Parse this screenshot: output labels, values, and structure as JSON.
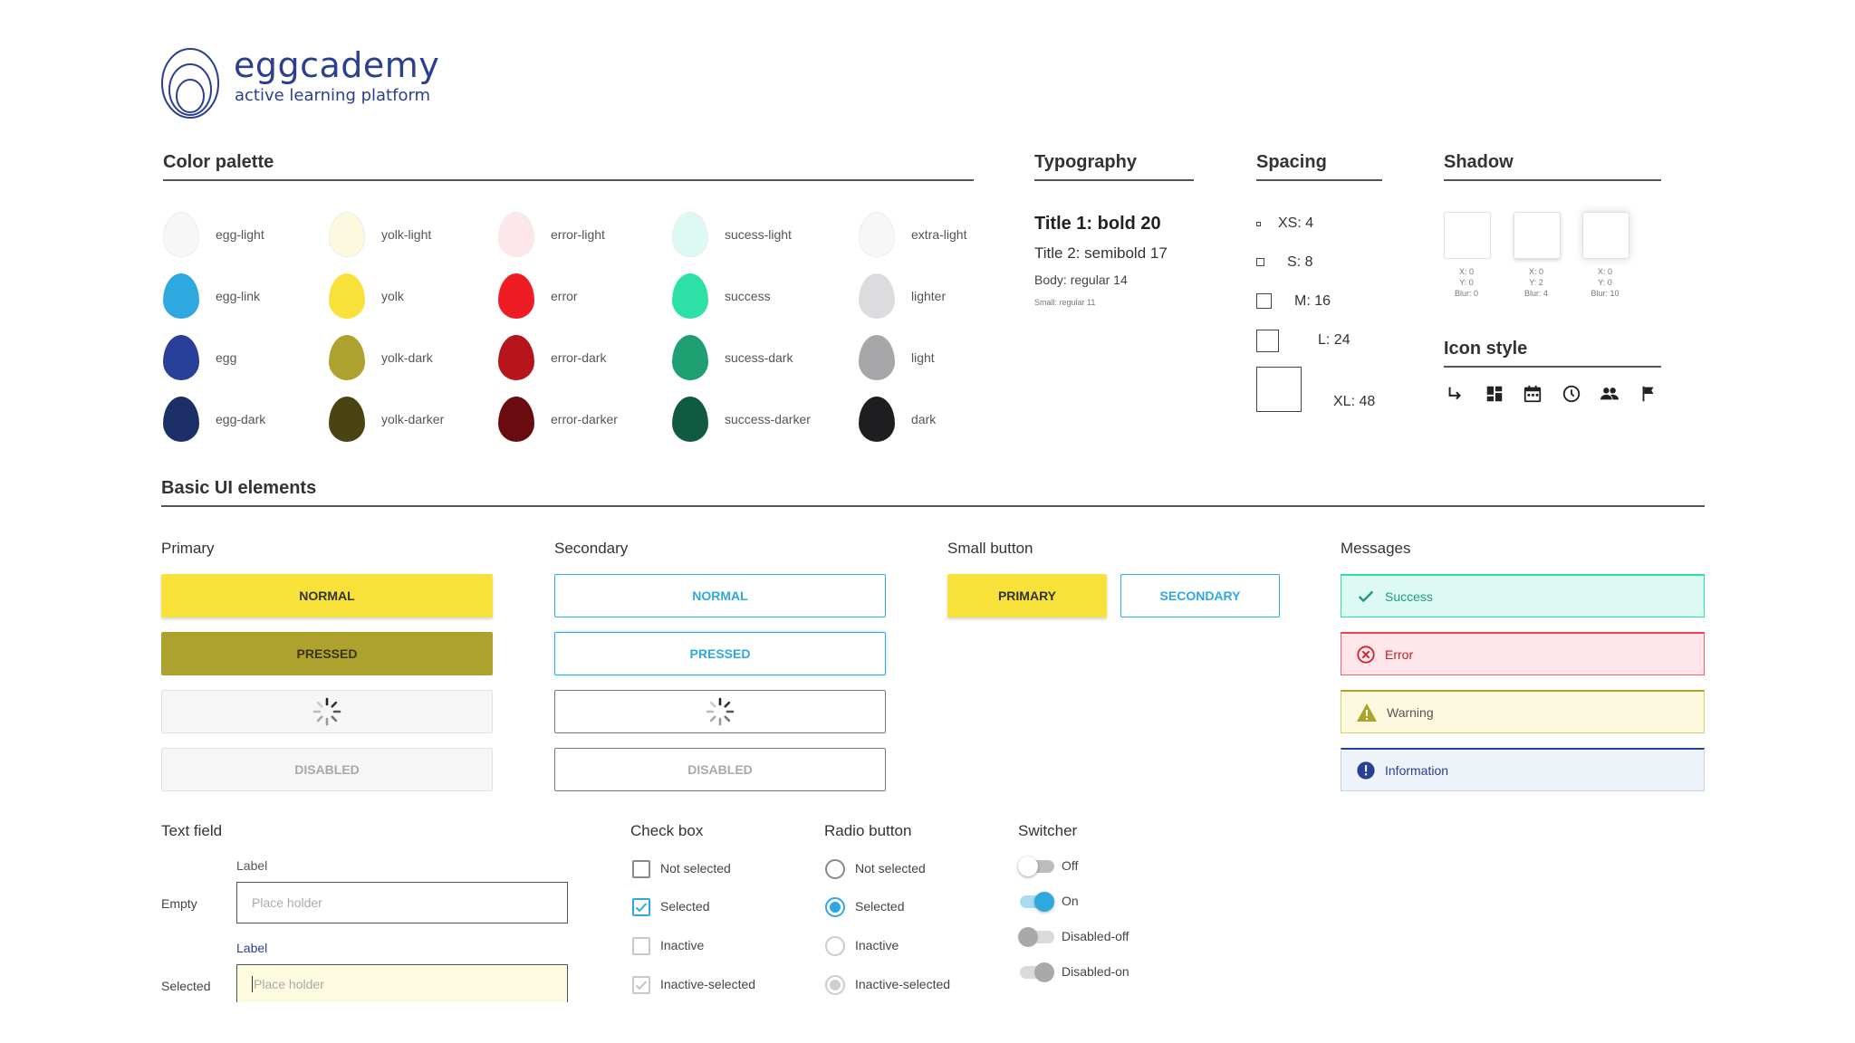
{
  "brand": {
    "name": "eggcademy",
    "tagline": "active learning platform"
  },
  "sections": {
    "color_palette": "Color palette",
    "typography": "Typography",
    "spacing": "Spacing",
    "shadow": "Shadow",
    "icon_style": "Icon style",
    "basic_ui": "Basic UI elements"
  },
  "palette": {
    "col1": [
      {
        "label": "egg-light",
        "color": "#f7f7f7"
      },
      {
        "label": "egg-link",
        "color": "#2fa8e0"
      },
      {
        "label": "egg",
        "color": "#283f97"
      },
      {
        "label": "egg-dark",
        "color": "#1b2e66"
      }
    ],
    "col2": [
      {
        "label": "yolk-light",
        "color": "#fdf9df"
      },
      {
        "label": "yolk",
        "color": "#f8e23a"
      },
      {
        "label": "yolk-dark",
        "color": "#aea22e"
      },
      {
        "label": "yolk-darker",
        "color": "#4a4412"
      }
    ],
    "col3": [
      {
        "label": "error-light",
        "color": "#fde7ea"
      },
      {
        "label": "error",
        "color": "#f01c23"
      },
      {
        "label": "error-dark",
        "color": "#b6151c"
      },
      {
        "label": "error-darker",
        "color": "#6a0b10"
      }
    ],
    "col4": [
      {
        "label": "sucess-light",
        "color": "#dcfaf3"
      },
      {
        "label": "success",
        "color": "#2de0a6"
      },
      {
        "label": "sucess-dark",
        "color": "#1e9f71"
      },
      {
        "label": "success-darker",
        "color": "#0f5a40"
      }
    ],
    "col5": [
      {
        "label": "extra-light",
        "color": "#f7f7f8"
      },
      {
        "label": "lighter",
        "color": "#dcdcde"
      },
      {
        "label": "light",
        "color": "#a7a7a9"
      },
      {
        "label": "dark",
        "color": "#1e1e20"
      }
    ]
  },
  "typography": {
    "title1": "Title 1: bold 20",
    "title2": "Title 2: semibold 17",
    "body": "Body: regular 14",
    "small": "Small: regular 11"
  },
  "spacing": {
    "xs": "XS: 4",
    "s": "S: 8",
    "m": "M: 16",
    "l": "L: 24",
    "xl": "XL: 48"
  },
  "shadows": [
    {
      "x": "X: 0",
      "y": "Y: 0",
      "blur": "Blur: 0"
    },
    {
      "x": "X: 0",
      "y": "Y: 2",
      "blur": "Blur: 4"
    },
    {
      "x": "X: 0",
      "y": "Y: 0",
      "blur": "Blur: 10"
    }
  ],
  "icons": [
    "subdirectory-arrow-icon",
    "dashboard-icon",
    "calendar-icon",
    "clock-icon",
    "people-icon",
    "flag-icon"
  ],
  "primary": {
    "heading": "Primary",
    "normal": "NORMAL",
    "pressed": "PRESSED",
    "disabled": "DISABLED"
  },
  "secondary": {
    "heading": "Secondary",
    "normal": "NORMAL",
    "pressed": "PRESSED",
    "disabled": "DISABLED"
  },
  "small_button": {
    "heading": "Small button",
    "primary": "PRIMARY",
    "secondary": "SECONDARY"
  },
  "messages": {
    "heading": "Messages",
    "success": "Success",
    "error": "Error",
    "warning": "Warning",
    "information": "Information"
  },
  "text_field": {
    "heading": "Text field",
    "label": "Label",
    "empty_row": "Empty",
    "selected_row": "Selected",
    "placeholder": "Place holder"
  },
  "checkbox": {
    "heading": "Check box",
    "items": [
      "Not selected",
      "Selected",
      "Inactive",
      "Inactive-selected"
    ]
  },
  "radio": {
    "heading": "Radio button",
    "items": [
      "Not selected",
      "Selected",
      "Inactive",
      "Inactive-selected"
    ]
  },
  "switcher": {
    "heading": "Switcher",
    "items": [
      "Off",
      "On",
      "Disabled-off",
      "Disabled-on"
    ]
  },
  "colors": {
    "yolk": "#f8e23a",
    "yolk_dark": "#aea22e",
    "egg_link": "#2fa8e0",
    "egg": "#283f97",
    "success_bg": "#dcfaf3",
    "success_border": "#2de0a6",
    "success_icon": "#1e9f71",
    "error_bg": "#fde7ea",
    "error_border": "#f04050",
    "error_icon": "#d0202a",
    "warning_bg": "#fdf9df",
    "warning_border": "#aea22e",
    "warning_icon": "#7e7420",
    "info_bg": "#eef3fa",
    "info_border": "#283f97",
    "info_icon": "#283f97"
  }
}
